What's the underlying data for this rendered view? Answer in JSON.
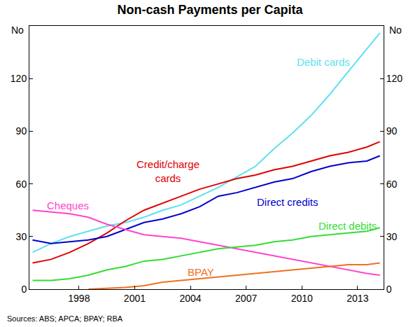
{
  "chart_data": {
    "type": "line",
    "title": "Non-cash Payments per Capita",
    "ylabel": "No",
    "y2label": "No",
    "source": "Sources: ABS; APCA; BPAY; RBA",
    "grid": false,
    "x": [
      1995.5,
      1996.5,
      1997.5,
      1998.5,
      1999.5,
      2000.5,
      2001.5,
      2002.5,
      2003.5,
      2004.5,
      2005.5,
      2006.5,
      2007.5,
      2008.5,
      2009.5,
      2010.5,
      2011.5,
      2012.5,
      2013.5,
      2014.2
    ],
    "xlim": [
      1995.33,
      2014.4
    ],
    "xticks": [
      1998,
      2001,
      2004,
      2007,
      2010,
      2013
    ],
    "ylim": [
      0,
      150
    ],
    "yticks": [
      0,
      30,
      60,
      90,
      120
    ],
    "y2lim": [
      0,
      150
    ],
    "y2ticks": [
      0,
      30,
      60,
      90,
      120
    ],
    "series": [
      {
        "name": "Debit cards",
        "color": "#5ce1f0",
        "values": [
          21,
          26,
          30,
          33,
          36,
          38,
          41,
          45,
          48,
          53,
          58,
          64,
          70,
          80,
          89,
          99,
          111,
          124,
          137,
          146
        ]
      },
      {
        "name": "Credit/charge cards",
        "color": "#e00000",
        "values": [
          15,
          17,
          21,
          26,
          32,
          39,
          45,
          49,
          53,
          57,
          60,
          63,
          65,
          68,
          70,
          73,
          76,
          78,
          81,
          84
        ]
      },
      {
        "name": "Direct credits",
        "color": "#0000cc",
        "values": [
          28,
          26,
          27,
          28,
          30,
          34,
          38,
          40,
          43,
          47,
          53,
          55,
          58,
          61,
          63,
          67,
          70,
          72,
          73,
          76
        ]
      },
      {
        "name": "Cheques",
        "color": "#ff44cc",
        "values": [
          45,
          44,
          43,
          41,
          37,
          34,
          31,
          30,
          29,
          27,
          25,
          23,
          21,
          19,
          17,
          15,
          13,
          11,
          9,
          8
        ]
      },
      {
        "name": "Direct debits",
        "color": "#33dd33",
        "values": [
          5,
          5,
          6,
          8,
          11,
          13,
          16,
          17,
          19,
          21,
          23,
          24,
          25,
          27,
          28,
          30,
          31,
          32,
          33,
          35
        ]
      },
      {
        "name": "BPAY",
        "color": "#f07020",
        "values": [
          null,
          null,
          null,
          0,
          0.5,
          1,
          2,
          4,
          5,
          6,
          7,
          8,
          9,
          10,
          11,
          12,
          13,
          14,
          14,
          15
        ]
      }
    ]
  }
}
